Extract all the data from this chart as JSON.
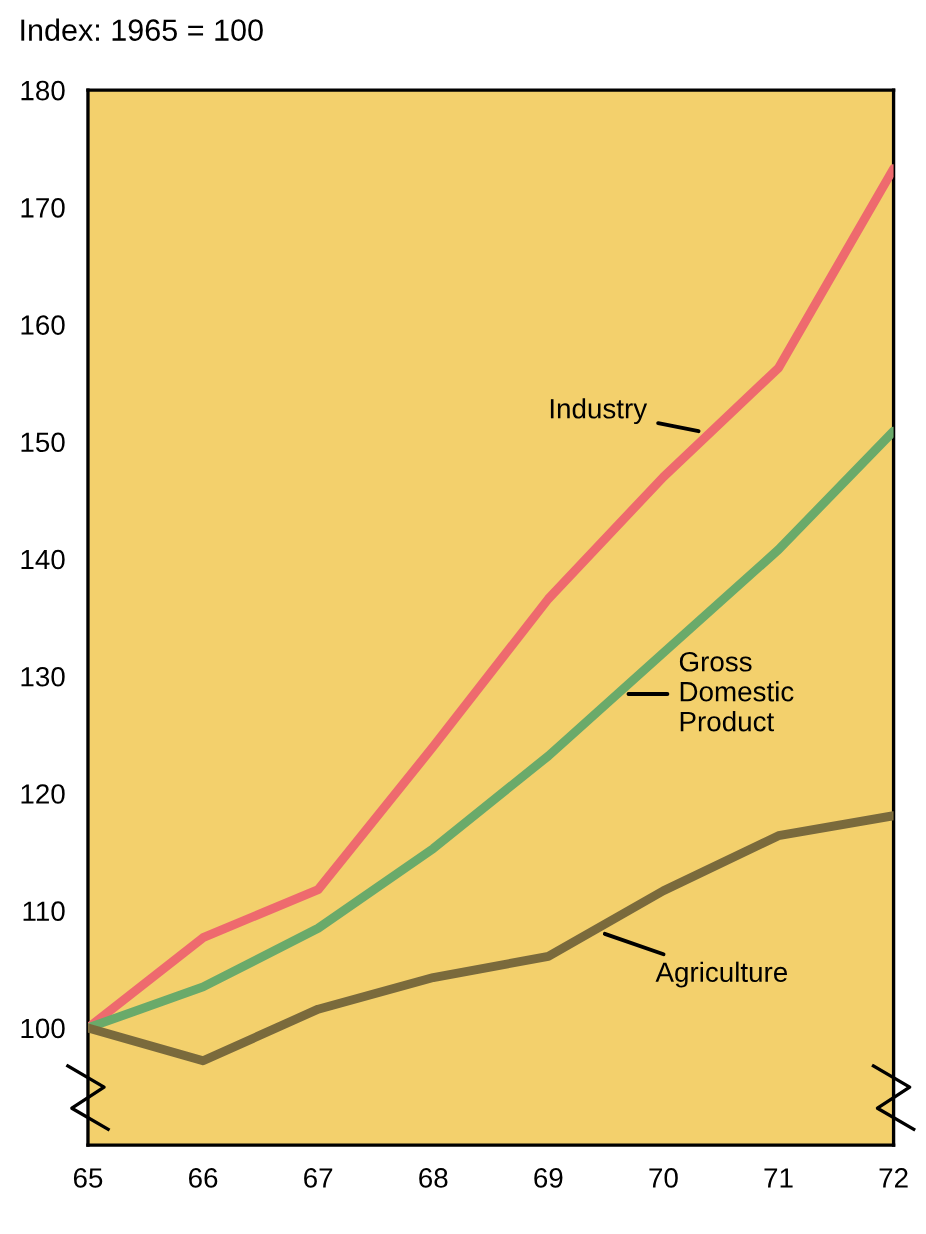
{
  "chart_data": {
    "type": "line",
    "title": "Index: 1965 = 100",
    "x": [
      65,
      66,
      67,
      68,
      69,
      70,
      71,
      72
    ],
    "series": [
      {
        "name": "Industry",
        "color": "#ee6a6e",
        "values": [
          100,
          107.7,
          111.8,
          124,
          136.6,
          147,
          156.3,
          173.3
        ]
      },
      {
        "name": "Gross\nDomestic\nProduct",
        "color": "#6aaa6a",
        "values": [
          100,
          103.5,
          108.5,
          115.3,
          123.2,
          132,
          140.8,
          150.9
        ]
      },
      {
        "name": "Agriculture",
        "color": "#7a6a3c",
        "values": [
          100,
          97.2,
          101.6,
          104.3,
          106.1,
          111.7,
          116.4,
          118.1
        ]
      }
    ],
    "xlim": [
      65,
      72
    ],
    "ylim": [
      90,
      180
    ],
    "xticks": [
      65,
      66,
      67,
      68,
      69,
      70,
      71,
      72
    ],
    "yticks": [
      100,
      110,
      120,
      130,
      140,
      150,
      160,
      170,
      180
    ],
    "grid": false,
    "legend": false,
    "marker": "none",
    "line_style": "solid"
  }
}
